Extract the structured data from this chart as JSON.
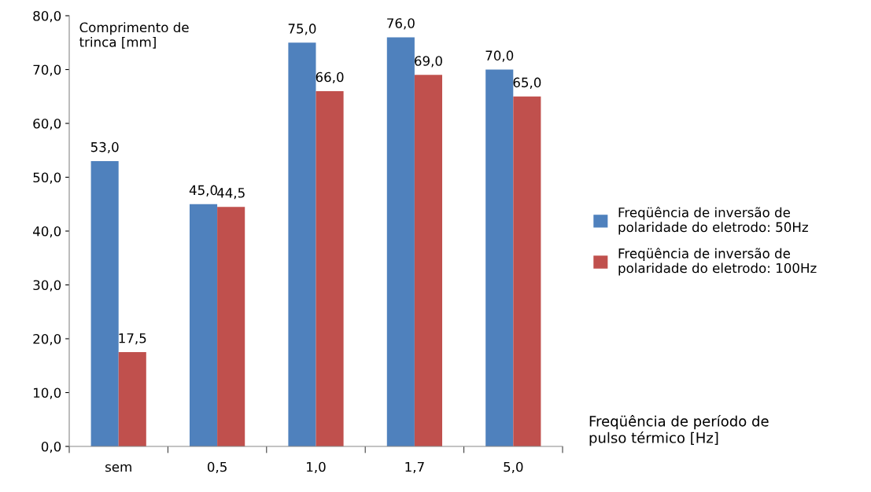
{
  "chart_data": {
    "type": "bar",
    "ylabel": "Comprimento de\ntrinca [mm]",
    "xlabel": "Freqüência de período de\npulso térmico [Hz]",
    "categories": [
      "sem",
      "0,5",
      "1,0",
      "1,7",
      "5,0"
    ],
    "series": [
      {
        "name": "Freqüência de inversão de\npolaridade do eletrodo: 50Hz",
        "color": "#4f81bd",
        "values": [
          53.0,
          45.0,
          75.0,
          76.0,
          70.0
        ],
        "value_labels": [
          "53,0",
          "45,0",
          "75,0",
          "76,0",
          "70,0"
        ]
      },
      {
        "name": "Freqüência de inversão de\npolaridade do eletrodo: 100Hz",
        "color": "#c0504d",
        "values": [
          17.5,
          44.5,
          66.0,
          69.0,
          65.0
        ],
        "value_labels": [
          "17,5",
          "44,5",
          "66,0",
          "69,0",
          "65,0"
        ]
      }
    ],
    "ylim": [
      0,
      80
    ],
    "yticks": [
      {
        "value": 0,
        "label": "0,0"
      },
      {
        "value": 10,
        "label": "10,0"
      },
      {
        "value": 20,
        "label": "20,0"
      },
      {
        "value": 30,
        "label": "30,0"
      },
      {
        "value": 40,
        "label": "40,0"
      },
      {
        "value": 50,
        "label": "50,0"
      },
      {
        "value": 60,
        "label": "60,0"
      },
      {
        "value": 70,
        "label": "70,0"
      },
      {
        "value": 80,
        "label": "80,0"
      }
    ],
    "grid": false,
    "legend": "right"
  }
}
